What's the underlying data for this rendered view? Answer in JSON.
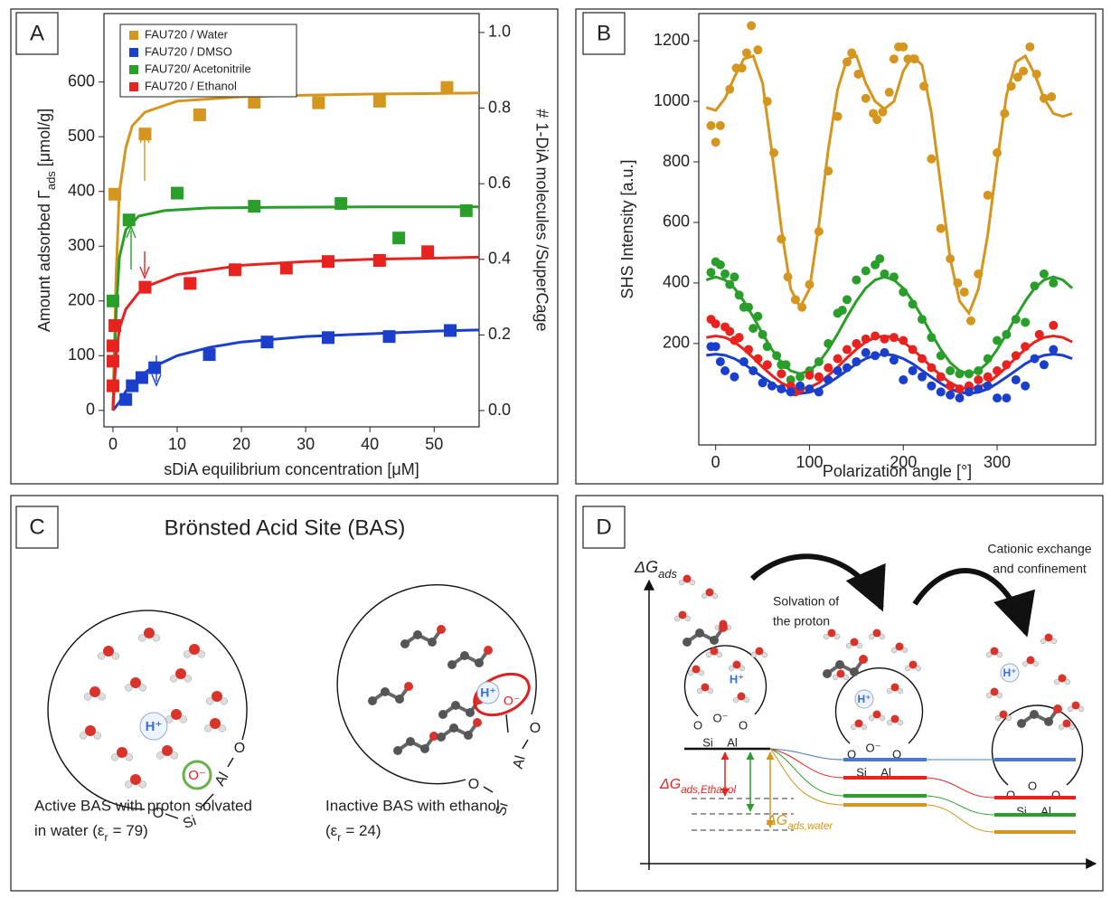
{
  "chart_data": [
    {
      "panel": "A",
      "type": "scatter",
      "marker": "square",
      "xlabel": "sDiA equilibrium concentration [μM]",
      "ylabel": {
        "text": "Amount adsorbed Γ",
        "sub": "ads",
        "after": "[μmol/g]"
      },
      "y2label": "# 1-DiA molecules /SuperCage",
      "xlim": [
        -1.4,
        57
      ],
      "ylim": [
        -30,
        725
      ],
      "y2lim": [
        -0.043,
        1.05
      ],
      "xticks": [
        0,
        10,
        20,
        30,
        40,
        50
      ],
      "yticks": [
        0,
        100,
        200,
        300,
        400,
        500,
        600
      ],
      "y2ticks": [
        {
          "value": 0,
          "label": "0.0"
        },
        0.2,
        0.4,
        0.6,
        0.8,
        {
          "value": 1,
          "label": "1.0"
        }
      ],
      "legend": "upper left",
      "series": [
        {
          "name": "FAU720 / Water",
          "color": "#d4961e",
          "x": [
            0.3,
            5,
            13.5,
            22,
            32,
            41.5,
            52
          ],
          "values": [
            395,
            505,
            540,
            563,
            562,
            565,
            590
          ],
          "fit": {
            "x": [
              0,
              0.5,
              1,
              2,
              3,
              5,
              10,
              20,
              30,
              40,
              50,
              57
            ],
            "values": [
              0,
              250,
              400,
              480,
              520,
              545,
              565,
              573,
              576,
              578,
              579,
              580
            ]
          }
        },
        {
          "name": "FAU720 / DMSO",
          "color": "#1a3fcc",
          "x": [
            2,
            3,
            4.5,
            6.5,
            15,
            24,
            33.5,
            43,
            52.5
          ],
          "values": [
            20,
            45,
            60,
            78,
            102,
            125,
            133,
            135,
            146
          ],
          "fit": {
            "x": [
              0,
              1,
              2,
              4,
              6,
              10,
              15,
              20,
              30,
              40,
              50,
              57
            ],
            "values": [
              0,
              15,
              35,
              60,
              78,
              100,
              115,
              125,
              135,
              140,
              145,
              147
            ]
          }
        },
        {
          "name": "FAU720/ Acetonitrile",
          "color": "#2a9e2a",
          "x": [
            0,
            2.5,
            10,
            22,
            35.5,
            44.5,
            55
          ],
          "values": [
            200,
            348,
            397,
            373,
            378,
            315,
            365
          ],
          "fit": {
            "x": [
              0,
              0.5,
              1,
              2,
              4,
              8,
              15,
              25,
              40,
              57
            ],
            "values": [
              0,
              180,
              280,
              330,
              355,
              365,
              370,
              371,
              372,
              372
            ]
          }
        },
        {
          "name": "FAU720 / Ethanol",
          "color": "#e8231f",
          "x": [
            0,
            0,
            0,
            0.3,
            5,
            12,
            19,
            27,
            33.5,
            41.5,
            49
          ],
          "values": [
            45,
            90,
            118,
            155,
            225,
            232,
            257,
            260,
            272,
            274,
            290
          ],
          "fit": {
            "x": [
              0,
              0.5,
              1,
              2,
              4,
              6,
              10,
              20,
              30,
              40,
              57
            ],
            "values": [
              0,
              100,
              150,
              185,
              215,
              230,
              248,
              265,
              272,
              276,
              280
            ]
          }
        }
      ]
    },
    {
      "panel": "B",
      "type": "scatter",
      "marker": "circle",
      "xlabel": "Polarization angle [°]",
      "ylabel": "SHS Intensity [a.u.]",
      "xlim": [
        -18,
        405
      ],
      "ylim": [
        -135,
        1290
      ],
      "xticks": [
        0,
        100,
        200,
        300
      ],
      "yticks": [
        200,
        400,
        600,
        800,
        1000,
        1200
      ],
      "series": [
        {
          "color": "#d4961e",
          "x": [
            -5,
            0,
            5,
            15,
            22,
            28,
            33,
            38,
            45,
            55,
            62,
            70,
            77,
            85,
            92,
            100,
            110,
            120,
            130,
            140,
            145,
            152,
            160,
            168,
            172,
            178,
            185,
            190,
            195,
            200,
            205,
            212,
            222,
            230,
            240,
            250,
            258,
            265,
            272,
            280,
            290,
            300,
            308,
            315,
            322,
            328,
            335,
            342,
            350,
            358
          ],
          "values": [
            920,
            865,
            920,
            1040,
            1110,
            1110,
            1160,
            1250,
            1170,
            1000,
            830,
            545,
            420,
            345,
            320,
            395,
            570,
            770,
            950,
            1130,
            1160,
            1090,
            1010,
            960,
            940,
            965,
            1030,
            1140,
            1180,
            1180,
            1140,
            1140,
            1050,
            810,
            580,
            480,
            400,
            370,
            275,
            430,
            690,
            830,
            960,
            1050,
            1080,
            1100,
            1180,
            1090,
            1010,
            1015
          ],
          "fit": {
            "x": [
              -10,
              0,
              10,
              20,
              30,
              40,
              50,
              60,
              70,
              80,
              90,
              100,
              110,
              120,
              130,
              140,
              150,
              160,
              170,
              180,
              190,
              200,
              210,
              220,
              230,
              240,
              250,
              260,
              270,
              280,
              290,
              300,
              310,
              320,
              330,
              340,
              350,
              360,
              370,
              380
            ],
            "values": [
              980,
              970,
              1010,
              1080,
              1140,
              1150,
              1060,
              830,
              580,
              380,
              320,
              380,
              590,
              840,
              1040,
              1140,
              1150,
              1060,
              1000,
              975,
              1000,
              1100,
              1150,
              1120,
              960,
              720,
              480,
              340,
              300,
              380,
              560,
              800,
              1020,
              1130,
              1150,
              1090,
              1010,
              960,
              950,
              960
            ]
          }
        },
        {
          "color": "#2a9e2a",
          "x": [
            -5,
            0,
            5,
            10,
            15,
            20,
            25,
            30,
            35,
            40,
            45,
            50,
            55,
            65,
            70,
            75,
            80,
            90,
            100,
            110,
            120,
            130,
            135,
            140,
            150,
            160,
            170,
            175,
            180,
            190,
            200,
            210,
            220,
            230,
            240,
            250,
            260,
            270,
            280,
            290,
            300,
            310,
            320,
            330,
            340,
            350,
            360
          ],
          "values": [
            435,
            470,
            460,
            430,
            395,
            420,
            360,
            320,
            320,
            250,
            290,
            230,
            190,
            160,
            130,
            130,
            80,
            90,
            110,
            140,
            200,
            300,
            310,
            345,
            410,
            440,
            460,
            480,
            430,
            420,
            370,
            330,
            280,
            220,
            160,
            110,
            100,
            100,
            110,
            150,
            210,
            230,
            280,
            270,
            390,
            430,
            400
          ],
          "fit": {
            "x": [
              -10,
              0,
              10,
              20,
              30,
              40,
              50,
              60,
              70,
              80,
              90,
              100,
              110,
              120,
              130,
              140,
              150,
              160,
              170,
              180,
              190,
              200,
              210,
              220,
              230,
              240,
              250,
              260,
              270,
              280,
              290,
              300,
              310,
              320,
              330,
              340,
              350,
              360,
              370,
              380
            ],
            "values": [
              410,
              420,
              410,
              383,
              340,
              288,
              232,
              180,
              137,
              110,
              100,
              110,
              137,
              180,
              232,
              288,
              340,
              383,
              410,
              420,
              410,
              383,
              340,
              288,
              232,
              180,
              137,
              110,
              100,
              110,
              137,
              180,
              232,
              288,
              340,
              383,
              410,
              420,
              410,
              383
            ]
          }
        },
        {
          "color": "#e8231f",
          "x": [
            -5,
            0,
            10,
            15,
            20,
            25,
            35,
            45,
            55,
            70,
            80,
            85,
            90,
            100,
            110,
            120,
            130,
            140,
            150,
            160,
            170,
            180,
            190,
            200,
            210,
            220,
            230,
            240,
            250,
            260,
            270,
            280,
            290,
            300,
            310,
            320,
            330,
            345,
            360
          ],
          "values": [
            280,
            265,
            255,
            240,
            210,
            220,
            180,
            150,
            130,
            100,
            60,
            40,
            50,
            95,
            90,
            120,
            150,
            180,
            200,
            215,
            225,
            215,
            220,
            210,
            180,
            150,
            120,
            90,
            60,
            50,
            60,
            80,
            90,
            110,
            130,
            160,
            190,
            230,
            260
          ],
          "fit": {
            "x": [
              -10,
              0,
              10,
              20,
              30,
              40,
              50,
              60,
              70,
              80,
              90,
              100,
              110,
              120,
              130,
              140,
              150,
              160,
              170,
              180,
              190,
              200,
              210,
              220,
              230,
              240,
              250,
              260,
              270,
              280,
              290,
              300,
              310,
              320,
              330,
              340,
              350,
              360,
              370,
              380
            ],
            "values": [
              220,
              225,
              220,
              205,
              181,
              153,
              122,
              94,
              70,
              55,
              50,
              55,
              70,
              94,
              122,
              153,
              181,
              205,
              220,
              225,
              220,
              205,
              181,
              153,
              122,
              94,
              70,
              55,
              50,
              55,
              70,
              94,
              122,
              153,
              181,
              205,
              220,
              225,
              220,
              205
            ]
          }
        },
        {
          "color": "#1a3fcc",
          "x": [
            -5,
            0,
            5,
            10,
            20,
            30,
            40,
            50,
            60,
            70,
            80,
            90,
            100,
            110,
            120,
            130,
            140,
            150,
            160,
            170,
            180,
            190,
            200,
            210,
            220,
            230,
            240,
            250,
            260,
            270,
            280,
            290,
            300,
            310,
            320,
            330,
            340,
            350,
            360
          ],
          "values": [
            190,
            190,
            140,
            110,
            90,
            140,
            110,
            70,
            60,
            50,
            40,
            60,
            50,
            40,
            80,
            110,
            120,
            140,
            170,
            160,
            170,
            145,
            80,
            110,
            90,
            60,
            40,
            30,
            20,
            40,
            50,
            60,
            20,
            20,
            80,
            60,
            150,
            130,
            180
          ],
          "fit": {
            "x": [
              -10,
              0,
              10,
              20,
              30,
              40,
              50,
              60,
              70,
              80,
              90,
              100,
              110,
              120,
              130,
              140,
              150,
              160,
              170,
              180,
              190,
              200,
              210,
              220,
              230,
              240,
              250,
              260,
              270,
              280,
              290,
              300,
              310,
              320,
              330,
              340,
              350,
              360,
              370,
              380
            ],
            "values": [
              161,
              165,
              161,
              150,
              133,
              111,
              89,
              68,
              50,
              39,
              35,
              39,
              50,
              68,
              89,
              111,
              133,
              150,
              161,
              165,
              161,
              150,
              133,
              111,
              89,
              68,
              50,
              39,
              35,
              39,
              50,
              68,
              89,
              111,
              133,
              150,
              161,
              165,
              161,
              150
            ]
          }
        }
      ]
    }
  ],
  "panel_c": {
    "label": "C",
    "title": "Brönsted Acid Site (BAS)",
    "left": {
      "atoms": [
        "O",
        "Si",
        "Al",
        "O"
      ],
      "proton": "H⁺",
      "oxygen": "O⁻",
      "caption": [
        "Active BAS with  proton solvated",
        {
          "text": "in  water (ε",
          "sub": "r",
          "after": "= 79)"
        }
      ]
    },
    "right": {
      "atoms": [
        "O",
        "Si",
        "Al",
        "O"
      ],
      "proton": "H⁺",
      "oxygen": "O⁻",
      "caption": [
        "Inactive BAS with ethanol",
        {
          "text": "(ε",
          "sub": "r",
          "after": "= 24)"
        }
      ]
    }
  },
  "panel_d": {
    "label": "D",
    "axis_label": {
      "text": "ΔG",
      "sub": "ads"
    },
    "step1": [
      "Solvation of",
      "the proton"
    ],
    "step2": [
      "Cationic exchange",
      "and confinement"
    ],
    "dg_ethanol": {
      "text": "ΔG",
      "sub": "ads,Ethanol"
    },
    "dg_water": {
      "text": "ΔG",
      "sub": "ads,water"
    },
    "structures": [
      {
        "atoms": [
          "O",
          "O⁻",
          "O",
          "Si",
          "Al"
        ],
        "proton": "H⁺"
      },
      {
        "atoms": [
          "O",
          "O⁻",
          "O",
          "Si",
          "Al"
        ],
        "proton": "H⁺"
      },
      {
        "atoms": [
          "O",
          "O",
          "O",
          "Si",
          "Al"
        ],
        "proton": "H⁺"
      }
    ]
  }
}
